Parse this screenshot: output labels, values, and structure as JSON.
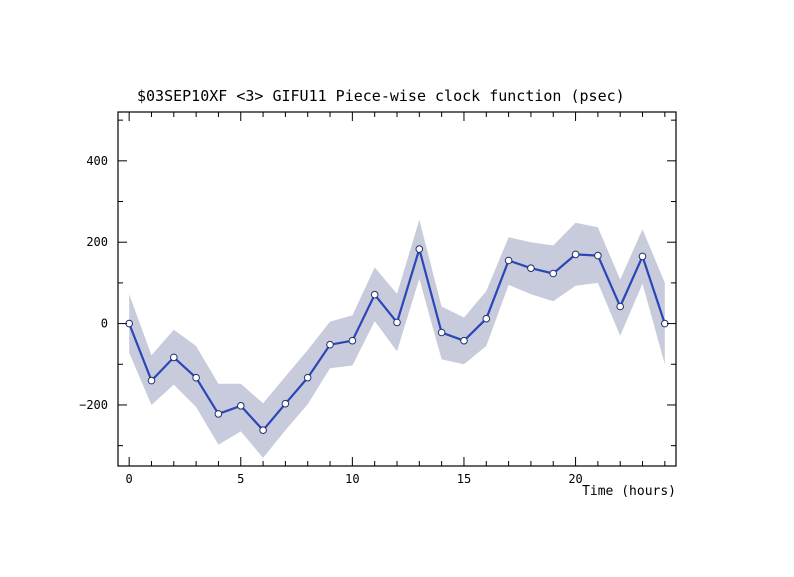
{
  "chart_data": {
    "type": "line",
    "title": "$03SEP10XF <3>  GIFU11    Piece-wise clock function (psec)",
    "xlabel": "Time (hours)",
    "ylabel": "",
    "xlim": [
      -0.5,
      24.5
    ],
    "ylim": [
      -350,
      520
    ],
    "x_ticks": [
      0,
      5,
      10,
      15,
      20
    ],
    "y_ticks": [
      -200,
      0,
      200,
      400
    ],
    "x_tick_labels": [
      "0",
      "5",
      "10",
      "15",
      "20"
    ],
    "y_tick_labels": [
      "−200",
      "0",
      "200",
      "400"
    ],
    "grid": false,
    "colors": {
      "line": "#2a46b8",
      "band": "#c8cbdb",
      "marker_fill": "#ffffff"
    },
    "series": [
      {
        "x": [
          0,
          1,
          2,
          3,
          4,
          5,
          6,
          7,
          8,
          9,
          10,
          11,
          12,
          13,
          14,
          15,
          16,
          17,
          18,
          19,
          20,
          21,
          22,
          23,
          24
        ],
        "values": [
          0,
          -140,
          -83,
          -133,
          -222,
          -202,
          -262,
          -197,
          -133,
          -52,
          -42,
          71,
          3,
          183,
          -22,
          -42,
          12,
          155,
          136,
          123,
          170,
          167,
          42,
          165,
          0
        ],
        "upper": [
          72,
          -78,
          -15,
          -55,
          -148,
          -148,
          -196,
          -130,
          -65,
          5,
          20,
          138,
          73,
          255,
          42,
          15,
          80,
          212,
          200,
          192,
          248,
          237,
          108,
          232,
          100
        ],
        "lower": [
          -72,
          -200,
          -150,
          -205,
          -298,
          -265,
          -330,
          -262,
          -198,
          -110,
          -103,
          6,
          -68,
          110,
          -88,
          -100,
          -55,
          95,
          72,
          55,
          93,
          100,
          -30,
          98,
          -100
        ]
      }
    ]
  }
}
